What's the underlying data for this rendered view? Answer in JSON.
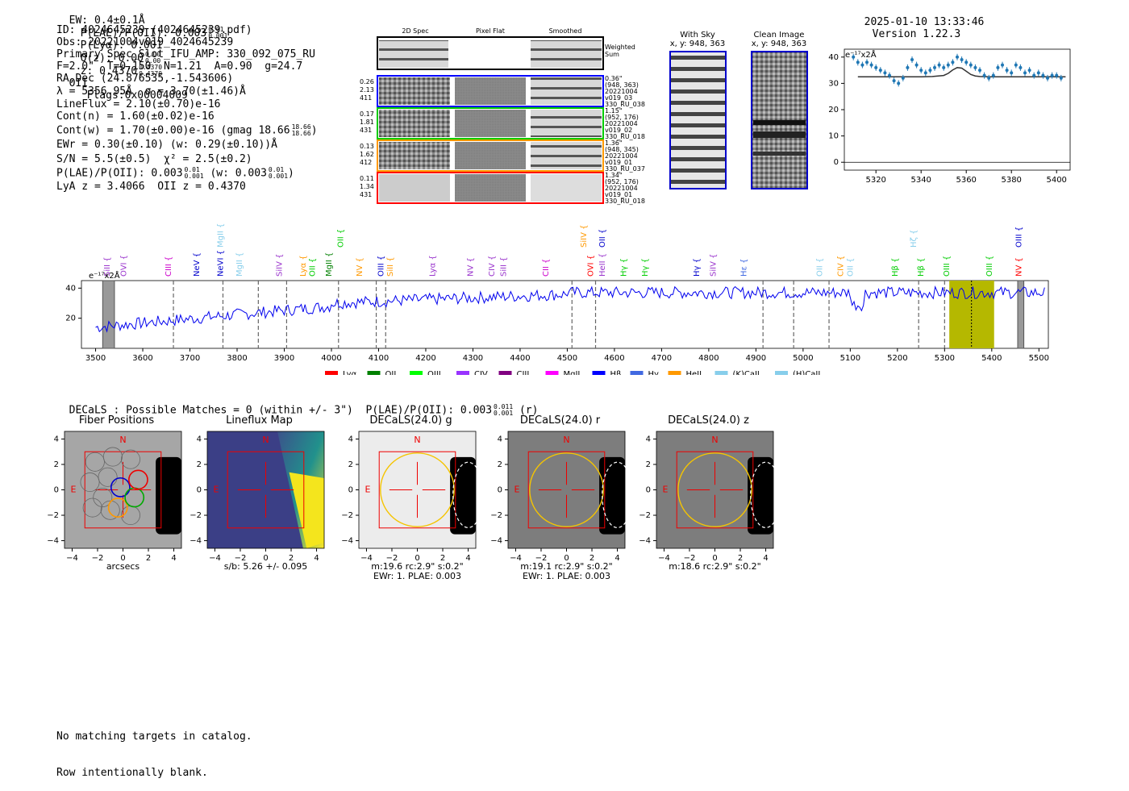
{
  "header": {
    "ew": "EW: 0.4±0.1Å",
    "plae_label": "P(LAE)/P(OII): 0.003",
    "plae_hi": "0.01",
    "plae_lo": "0.001",
    "plya": "P(Lyα): 0.001",
    "qz_label": "Q(z): 0.00",
    "qz_hi": "0.00",
    "qz_lo": "0.00",
    "z_label": "z: 0.4370",
    "z_hi": "0.4370",
    "z_lo": "0.4370",
    "z_line": "OII",
    "flags": "Flags:0x00004009",
    "timestamp": "2025-01-10 13:33:46",
    "version": "Version 1.22.3"
  },
  "info": {
    "lines": [
      "ID: 4024645239 (4024645239.pdf)",
      "Obs: 20221004v019_4024645239",
      "Primary Spec_Slot_IFU_AMP: 330_092_075_RU",
      "F=2.0\"  T=0.150  N=1.21  A=0.90  g=24.7",
      "RA,Dec (24.876535,-1.543606)",
      "λ = 5356.95Å  σ = 3.70(±1.46)Å",
      "LineFlux = 2.10(±0.70)e-16",
      "Cont(n) = 1.60(±0.02)e-16"
    ],
    "contw": "Cont(w) = 1.70(±0.00)e-16 (gmag 18.66",
    "contw_hi": "18.66",
    "contw_lo": "18.66",
    "ewr": "EWr = 0.30(±0.10) (w: 0.29(±0.10))Å",
    "sn": "S/N = 5.5(±0.5)  χ² = 2.5(±0.2)",
    "plae2_label": "P(LAE)/P(OII): 0.003",
    "plae2_hi": "0.01",
    "plae2_lo": "0.001",
    "plae2_w": "(w: 0.003",
    "plae2_whi": "0.01",
    "plae2_wlo": "0.001",
    "lya_oii": "LyA z = 3.4066  OII z = 0.4370"
  },
  "cutouts": {
    "col_labels": [
      "2D Spec",
      "Pixel Flat",
      "Smoothed"
    ],
    "weighted_sum": "Weighted\nSum",
    "rows": [
      {
        "left": [
          "0.26",
          "2.13",
          "411"
        ],
        "right": [
          "0.36\"",
          "(948, 363)",
          "20221004",
          "v019_03",
          "330_RU_038"
        ],
        "color": "#0000ff"
      },
      {
        "left": [
          "0.17",
          "1.81",
          "431"
        ],
        "right": [
          "1.15\"",
          "(952, 176)",
          "20221004",
          "v019_02",
          "330_RU_018"
        ],
        "color": "#00cc00"
      },
      {
        "left": [
          "0.13",
          "1.62",
          "412"
        ],
        "right": [
          "1.36\"",
          "(948, 345)",
          "20221004",
          "v019_01",
          "330_RU_037"
        ],
        "color": "#ff9900"
      },
      {
        "left": [
          "0.11",
          "1.34",
          "431"
        ],
        "right": [
          "1.34\"",
          "(952, 176)",
          "20221004",
          "v019_01",
          "330_RU_018"
        ],
        "color": "#ff0000"
      }
    ],
    "with_sky_title": "With Sky",
    "with_sky_sub": "x, y: 948, 363",
    "clean_title": "Clean Image",
    "clean_sub": "x, y: 948, 363"
  },
  "zoom_chart": {
    "ylabel_unit": "e⁻¹⁷x2Å",
    "type": "scatter",
    "x": [
      5310,
      5312,
      5314,
      5316,
      5318,
      5320,
      5322,
      5324,
      5326,
      5328,
      5330,
      5332,
      5334,
      5336,
      5338,
      5340,
      5342,
      5344,
      5346,
      5348,
      5350,
      5352,
      5354,
      5356,
      5358,
      5360,
      5362,
      5364,
      5366,
      5368,
      5370,
      5372,
      5374,
      5376,
      5378,
      5380,
      5382,
      5384,
      5386,
      5388,
      5390,
      5392,
      5394,
      5396,
      5398,
      5400,
      5402
    ],
    "y": [
      40,
      38,
      37,
      38,
      37,
      36,
      35,
      34,
      33,
      31,
      30,
      32,
      36,
      39,
      37,
      35,
      34,
      35,
      36,
      37,
      36,
      37,
      38,
      40,
      39,
      38,
      37,
      36,
      35,
      33,
      32,
      33,
      36,
      37,
      35,
      34,
      37,
      36,
      34,
      35,
      33,
      34,
      33,
      32,
      33,
      33,
      32
    ],
    "model_x": [
      5312,
      5340,
      5345,
      5350,
      5352,
      5354,
      5356,
      5358,
      5360,
      5362,
      5364,
      5366,
      5370,
      5404
    ],
    "model_y": [
      32.5,
      32.5,
      32.6,
      33,
      33.8,
      35.1,
      36.0,
      35.8,
      34.6,
      33.4,
      32.8,
      32.6,
      32.5,
      32.5
    ],
    "xticks": [
      5320,
      5340,
      5360,
      5380,
      5400
    ],
    "yticks": [
      0,
      10,
      20,
      30,
      40
    ],
    "xlim": [
      5306,
      5406
    ],
    "ylim": [
      -3,
      43
    ]
  },
  "spectrum": {
    "ylabel_unit": "e⁻¹⁷x2Å",
    "xticks": [
      3500,
      3600,
      3700,
      3800,
      3900,
      4000,
      4100,
      4200,
      4300,
      4400,
      4500,
      4600,
      4700,
      4800,
      4900,
      5000,
      5100,
      5200,
      5300,
      5400,
      5500
    ],
    "yticks": [
      20,
      40
    ],
    "xlim": [
      3470,
      5520
    ],
    "ylim": [
      0,
      45
    ],
    "highlight_band": [
      5310,
      5405
    ],
    "highlight_center": 5357,
    "gray_bands": [
      [
        3515,
        3540
      ],
      [
        5455,
        5468
      ]
    ],
    "dashed_lines": [
      3665,
      3770,
      3845,
      3905,
      4015,
      4095,
      4115,
      4560,
      4510,
      4915,
      4980,
      5055,
      5245,
      5300
    ],
    "top_labels": [
      {
        "t": "SiII",
        "x": 3530,
        "c": "#9933cc",
        "row": 1
      },
      {
        "t": "OVI",
        "x": 3565,
        "c": "#9933cc",
        "row": 1
      },
      {
        "t": "CIII",
        "x": 3660,
        "c": "#cc00cc",
        "row": 1
      },
      {
        "t": "NeV",
        "x": 3720,
        "c": "#0000cc",
        "row": 1
      },
      {
        "t": "NeVI",
        "x": 3770,
        "c": "#0000cc",
        "row": 1
      },
      {
        "t": "MgII",
        "x": 3810,
        "c": "#87ceeb",
        "row": 1
      },
      {
        "t": "MgII",
        "x": 3770,
        "c": "#87ceeb",
        "row": 0
      },
      {
        "t": "SiIV",
        "x": 3895,
        "c": "#9933cc",
        "row": 1
      },
      {
        "t": "Lyα",
        "x": 3945,
        "c": "#ff9900",
        "row": 1
      },
      {
        "t": "OII",
        "x": 3965,
        "c": "#00cc00",
        "row": 1
      },
      {
        "t": "MgII",
        "x": 4000,
        "c": "#008000",
        "row": 1
      },
      {
        "t": "OII",
        "x": 4025,
        "c": "#00cc00",
        "row": 0
      },
      {
        "t": "NV",
        "x": 4065,
        "c": "#ff9900",
        "row": 1
      },
      {
        "t": "OIII",
        "x": 4110,
        "c": "#0000cc",
        "row": 1
      },
      {
        "t": "SiII",
        "x": 4130,
        "c": "#ff9900",
        "row": 1
      },
      {
        "t": "Lyα",
        "x": 4220,
        "c": "#9933cc",
        "row": 1
      },
      {
        "t": "NV",
        "x": 4300,
        "c": "#9933cc",
        "row": 1
      },
      {
        "t": "CIV",
        "x": 4345,
        "c": "#9933cc",
        "row": 1
      },
      {
        "t": "SiII",
        "x": 4370,
        "c": "#9933cc",
        "row": 1
      },
      {
        "t": "CII",
        "x": 4460,
        "c": "#cc00cc",
        "row": 1
      },
      {
        "t": "OVI",
        "x": 4555,
        "c": "#ff0000",
        "row": 1
      },
      {
        "t": "SiIV",
        "x": 4540,
        "c": "#ff9900",
        "row": 0
      },
      {
        "t": "OII",
        "x": 4580,
        "c": "#0000cc",
        "row": 0
      },
      {
        "t": "HeII",
        "x": 4580,
        "c": "#9933cc",
        "row": 1
      },
      {
        "t": "Hγ",
        "x": 4625,
        "c": "#00cc00",
        "row": 1
      },
      {
        "t": "Hγ",
        "x": 4670,
        "c": "#00cc00",
        "row": 1
      },
      {
        "t": "Hγ",
        "x": 4780,
        "c": "#0000cc",
        "row": 1
      },
      {
        "t": "SiIV",
        "x": 4815,
        "c": "#9933cc",
        "row": 1
      },
      {
        "t": "Hε",
        "x": 4880,
        "c": "#4169e1",
        "row": 1
      },
      {
        "t": "OII",
        "x": 5040,
        "c": "#87ceeb",
        "row": 1
      },
      {
        "t": "CIV",
        "x": 5085,
        "c": "#ff9900",
        "row": 1
      },
      {
        "t": "OII",
        "x": 5105,
        "c": "#87ceeb",
        "row": 1
      },
      {
        "t": "Hβ",
        "x": 5200,
        "c": "#00cc00",
        "row": 1
      },
      {
        "t": "Hζ",
        "x": 5240,
        "c": "#87ceeb",
        "row": 0
      },
      {
        "t": "Hβ",
        "x": 5255,
        "c": "#00cc00",
        "row": 1
      },
      {
        "t": "OIII",
        "x": 5310,
        "c": "#00cc00",
        "row": 1
      },
      {
        "t": "OIII",
        "x": 5400,
        "c": "#00cc00",
        "row": 1
      },
      {
        "t": "OIII",
        "x": 5463,
        "c": "#0000cc",
        "row": 0
      },
      {
        "t": "NV",
        "x": 5463,
        "c": "#ff0000",
        "row": 1
      }
    ],
    "legend": [
      {
        "label": "Lyα",
        "color": "#ff0000"
      },
      {
        "label": "OII",
        "color": "#008000"
      },
      {
        "label": "OIII",
        "color": "#00ff00"
      },
      {
        "label": "CIV",
        "color": "#9933ff"
      },
      {
        "label": "CIII",
        "color": "#800080"
      },
      {
        "label": "MgII",
        "color": "#ff00ff"
      },
      {
        "label": "Hβ",
        "color": "#0000ff"
      },
      {
        "label": "Hγ",
        "color": "#4169e1"
      },
      {
        "label": "HeII",
        "color": "#ff9900"
      },
      {
        "label": "(K)CaII",
        "color": "#87ceeb"
      },
      {
        "label": "(H)CaII",
        "color": "#87ceeb"
      }
    ]
  },
  "chart_data": [
    {
      "type": "scatter",
      "title": "",
      "xlabel": "",
      "ylabel": "e⁻¹⁷x2Å",
      "xlim": [
        5306,
        5406
      ],
      "ylim": [
        -3,
        43
      ]
    },
    {
      "type": "line",
      "title": "",
      "xlabel": "",
      "ylabel": "e⁻¹⁷x2Å",
      "xlim": [
        3470,
        5520
      ],
      "ylim": [
        0,
        45
      ]
    }
  ],
  "decals": {
    "summary": "DECaLS : Possible Matches = 0 (within +/- 3\")  P(LAE)/P(OII): 0.003",
    "summary_hi": "0.011",
    "summary_lo": "0.001",
    "summary_band": "(r)",
    "panels": [
      {
        "title": "Fiber Positions",
        "foot1": "arcsecs",
        "foot2": ""
      },
      {
        "title": "Lineflux Map",
        "foot1": "s/b: 5.26 +/- 0.095",
        "foot2": ""
      },
      {
        "title": "DECaLS(24.0) g",
        "foot1": "m:19.6 rc:2.9\"  s:0.2\"",
        "foot2": "EWr: 1. PLAE: 0.003"
      },
      {
        "title": "DECaLS(24.0) r",
        "foot1": "m:19.1 rc:2.9\"  s:0.2\"",
        "foot2": "EWr: 1. PLAE: 0.003"
      },
      {
        "title": "DECaLS(24.0) z",
        "foot1": "m:18.6 rc:2.9\"  s:0.2\"",
        "foot2": ""
      }
    ],
    "ticks": [
      "4",
      "2",
      "0",
      "−2",
      "−4"
    ],
    "xticks": [
      "−4",
      "−2",
      "0",
      "2",
      "4"
    ],
    "north": "N",
    "east": "E"
  },
  "footer": {
    "line1": "No matching targets in catalog.",
    "line2": "Row intentionally blank."
  }
}
